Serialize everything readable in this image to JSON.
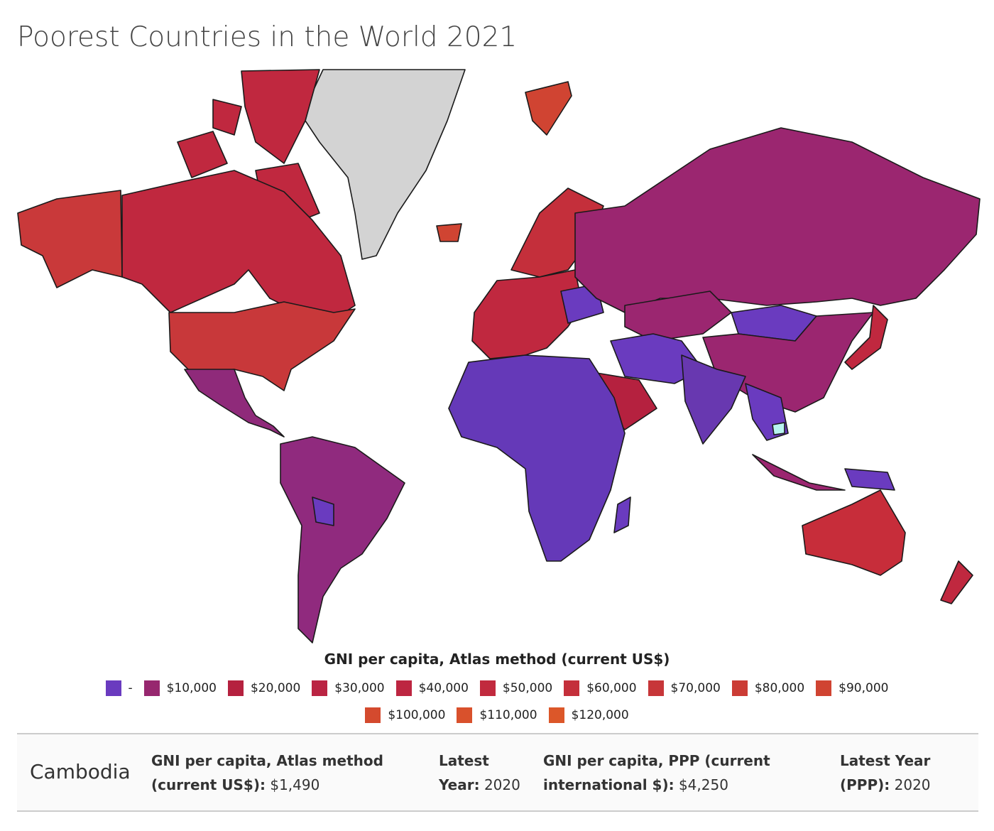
{
  "header": {
    "title": "Poorest Countries in the World 2021"
  },
  "legend": {
    "title": "GNI per capita, Atlas method (current US$)",
    "items": [
      {
        "label": "-",
        "color": "#6a3bbf"
      },
      {
        "label": "$10,000",
        "color": "#97276f"
      },
      {
        "label": "$20,000",
        "color": "#b5213f"
      },
      {
        "label": "$30,000",
        "color": "#ba2443"
      },
      {
        "label": "$40,000",
        "color": "#bd2641"
      },
      {
        "label": "$50,000",
        "color": "#c12a3e"
      },
      {
        "label": "$60,000",
        "color": "#c42f3b"
      },
      {
        "label": "$70,000",
        "color": "#c73639"
      },
      {
        "label": "$80,000",
        "color": "#cb3c35"
      },
      {
        "label": "$90,000",
        "color": "#d04432"
      },
      {
        "label": "$100,000",
        "color": "#d44a2e"
      },
      {
        "label": "$110,000",
        "color": "#d9512c"
      },
      {
        "label": "$120,000",
        "color": "#dc5729"
      }
    ]
  },
  "panel": {
    "country": "Cambodia",
    "fields": [
      {
        "label": "GNI per capita, Atlas method (current US$):",
        "value": "$1,490"
      },
      {
        "label": "Latest Year:",
        "value": "2020"
      },
      {
        "label": "GNI per capita, PPP (current international $):",
        "value": "$4,250"
      },
      {
        "label": "Latest Year (PPP):",
        "value": "2020"
      }
    ]
  }
}
